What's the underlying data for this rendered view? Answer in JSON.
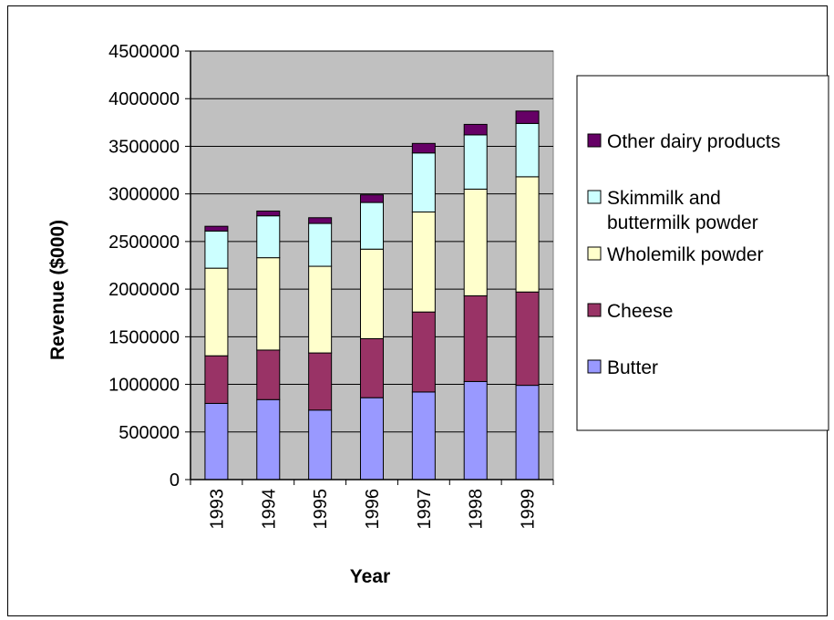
{
  "chart_data": {
    "type": "bar",
    "stacked": true,
    "title": "",
    "xlabel": "Year",
    "ylabel": "Revenue ($000)",
    "ylim": [
      0,
      4500000
    ],
    "yticks": [
      "0",
      "500000",
      "1000000",
      "1500000",
      "2000000",
      "2500000",
      "3000000",
      "3500000",
      "4000000",
      "4500000"
    ],
    "categories": [
      "1993",
      "1994",
      "1995",
      "1996",
      "1997",
      "1998",
      "1999"
    ],
    "grid": true,
    "plot_background": "#c0c0c0",
    "legend_position": "right",
    "series": [
      {
        "name": "Butter",
        "color": "#9999ff",
        "values": [
          800000,
          840000,
          730000,
          860000,
          920000,
          1030000,
          990000
        ]
      },
      {
        "name": "Cheese",
        "color": "#993366",
        "values": [
          500000,
          520000,
          600000,
          620000,
          840000,
          900000,
          980000
        ]
      },
      {
        "name": "Wholemilk powder",
        "color": "#ffffcc",
        "values": [
          920000,
          970000,
          910000,
          940000,
          1050000,
          1120000,
          1210000
        ]
      },
      {
        "name": "Skimmilk and buttermilk powder",
        "name_lines": [
          "Skimmilk and",
          "buttermilk powder"
        ],
        "color": "#ccffff",
        "values": [
          390000,
          440000,
          450000,
          490000,
          620000,
          570000,
          560000
        ]
      },
      {
        "name": "Other dairy products",
        "color": "#660066",
        "values": [
          50000,
          50000,
          60000,
          80000,
          100000,
          110000,
          130000
        ]
      }
    ]
  }
}
